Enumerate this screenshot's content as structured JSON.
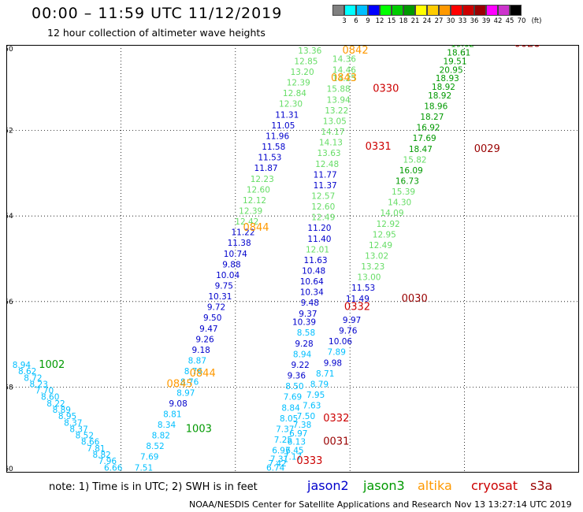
{
  "header": {
    "title": "00:00 – 11:59 UTC 11/12/2019",
    "subtitle": "12 hour collection of altimeter wave heights"
  },
  "scale": {
    "unit_label": "(ft)",
    "ticks": [
      "3",
      "6",
      "9",
      "12",
      "15",
      "18",
      "21",
      "24",
      "27",
      "30",
      "33",
      "36",
      "39",
      "42",
      "45",
      "70"
    ],
    "colors": [
      "#808080",
      "#00ffff",
      "#00bfff",
      "#0000ff",
      "#00ff00",
      "#00cc00",
      "#009900",
      "#ffff00",
      "#ffcc00",
      "#ff9900",
      "#ff0000",
      "#cc0000",
      "#990000",
      "#ff00ff",
      "#cc33cc",
      "#000000"
    ]
  },
  "map": {
    "lon_ticks": [
      "120",
      "123",
      "126",
      "129",
      "132",
      "135"
    ],
    "lat_ticks": [
      "-50",
      "-52",
      "-54",
      "-56",
      "-58",
      "-60"
    ],
    "lon_range": [
      120,
      135
    ],
    "lat_range": [
      -60,
      -50
    ],
    "grid": true
  },
  "satellites": [
    {
      "name": "jason2",
      "color": "#0000cc"
    },
    {
      "name": "jason3",
      "color": "#009900"
    },
    {
      "name": "altika",
      "color": "#ff9900"
    },
    {
      "name": "cryosat",
      "color": "#cc0000"
    },
    {
      "name": "s3a",
      "color": "#990000"
    }
  ],
  "times": [
    {
      "text": "0330",
      "lon": 129.8,
      "lat": -49.98,
      "color": "#cc0000"
    },
    {
      "text": "0330",
      "lon": 129.6,
      "lat": -51.1,
      "color": "#cc0000"
    },
    {
      "text": "0331",
      "lon": 129.4,
      "lat": -52.45,
      "color": "#cc0000"
    },
    {
      "text": "0332",
      "lon": 128.85,
      "lat": -56.2,
      "color": "#cc0000"
    },
    {
      "text": "0332",
      "lon": 128.3,
      "lat": -58.8,
      "color": "#cc0000"
    },
    {
      "text": "0333",
      "lon": 127.6,
      "lat": -59.8,
      "color": "#cc0000"
    },
    {
      "text": "0028",
      "lon": 133.3,
      "lat": -50.05,
      "color": "#990000"
    },
    {
      "text": "0029",
      "lon": 132.25,
      "lat": -52.5,
      "color": "#990000"
    },
    {
      "text": "0030",
      "lon": 130.35,
      "lat": -56.0,
      "color": "#990000"
    },
    {
      "text": "0031",
      "lon": 128.3,
      "lat": -59.35,
      "color": "#990000"
    },
    {
      "text": "0842",
      "lon": 128.8,
      "lat": -50.2,
      "color": "#ff9900"
    },
    {
      "text": "0843",
      "lon": 128.5,
      "lat": -50.85,
      "color": "#ff9900"
    },
    {
      "text": "0844",
      "lon": 126.2,
      "lat": -54.35,
      "color": "#ff9900"
    },
    {
      "text": "0844",
      "lon": 124.8,
      "lat": -57.75,
      "color": "#ff9900"
    },
    {
      "text": "0845",
      "lon": 124.2,
      "lat": -58.0,
      "color": "#ff9900"
    },
    {
      "text": "1002",
      "lon": 120.85,
      "lat": -57.55,
      "color": "#009900"
    },
    {
      "text": "1003",
      "lon": 124.7,
      "lat": -59.05,
      "color": "#009900"
    }
  ],
  "swh_labels": [
    {
      "v": "16.13",
      "lon": 128.85,
      "lat": -50.0,
      "c": "#66dd66"
    },
    {
      "v": "14.36",
      "lon": 128.85,
      "lat": -50.4,
      "c": "#66dd66"
    },
    {
      "v": "14.46",
      "lon": 128.85,
      "lat": -50.65,
      "c": "#66dd66"
    },
    {
      "v": "14.25",
      "lon": 128.85,
      "lat": -50.85,
      "c": "#66dd66"
    },
    {
      "v": "15.88",
      "lon": 128.7,
      "lat": -51.1,
      "c": "#66dd66"
    },
    {
      "v": "13.94",
      "lon": 128.7,
      "lat": -51.35,
      "c": "#66dd66"
    },
    {
      "v": "13.22",
      "lon": 128.65,
      "lat": -51.6,
      "c": "#66dd66"
    },
    {
      "v": "13.05",
      "lon": 128.6,
      "lat": -51.85,
      "c": "#66dd66"
    },
    {
      "v": "14.17",
      "lon": 128.55,
      "lat": -52.1,
      "c": "#66dd66"
    },
    {
      "v": "14.13",
      "lon": 128.5,
      "lat": -52.35,
      "c": "#66dd66"
    },
    {
      "v": "13.63",
      "lon": 128.45,
      "lat": -52.6,
      "c": "#66dd66"
    },
    {
      "v": "12.48",
      "lon": 128.4,
      "lat": -52.85,
      "c": "#66dd66"
    },
    {
      "v": "11.77",
      "lon": 128.35,
      "lat": -53.1,
      "c": "#0000cc"
    },
    {
      "v": "11.37",
      "lon": 128.35,
      "lat": -53.35,
      "c": "#0000cc"
    },
    {
      "v": "12.57",
      "lon": 128.3,
      "lat": -53.6,
      "c": "#66dd66"
    },
    {
      "v": "12.60",
      "lon": 128.3,
      "lat": -53.85,
      "c": "#66dd66"
    },
    {
      "v": "12.49",
      "lon": 128.3,
      "lat": -54.1,
      "c": "#66dd66"
    },
    {
      "v": "11.20",
      "lon": 128.2,
      "lat": -54.35,
      "c": "#0000cc"
    },
    {
      "v": "11.40",
      "lon": 128.2,
      "lat": -54.6,
      "c": "#0000cc"
    },
    {
      "v": "12.01",
      "lon": 128.15,
      "lat": -54.85,
      "c": "#66dd66"
    },
    {
      "v": "11.63",
      "lon": 128.1,
      "lat": -55.1,
      "c": "#0000cc"
    },
    {
      "v": "10.48",
      "lon": 128.05,
      "lat": -55.35,
      "c": "#0000cc"
    },
    {
      "v": "10.64",
      "lon": 128.0,
      "lat": -55.6,
      "c": "#0000cc"
    },
    {
      "v": "10.34",
      "lon": 128.0,
      "lat": -55.85,
      "c": "#0000cc"
    },
    {
      "v": "9.48",
      "lon": 127.95,
      "lat": -56.1,
      "c": "#0000cc"
    },
    {
      "v": "9.37",
      "lon": 127.9,
      "lat": -56.35,
      "c": "#0000cc"
    },
    {
      "v": "10.39",
      "lon": 127.8,
      "lat": -56.55,
      "c": "#0000cc"
    },
    {
      "v": "8.58",
      "lon": 127.85,
      "lat": -56.8,
      "c": "#00bfff"
    },
    {
      "v": "9.28",
      "lon": 127.8,
      "lat": -57.05,
      "c": "#0000cc"
    },
    {
      "v": "8.94",
      "lon": 127.75,
      "lat": -57.3,
      "c": "#00bfff"
    },
    {
      "v": "9.22",
      "lon": 127.7,
      "lat": -57.55,
      "c": "#0000cc"
    },
    {
      "v": "9.36",
      "lon": 127.6,
      "lat": -57.8,
      "c": "#0000cc"
    },
    {
      "v": "8.50",
      "lon": 127.55,
      "lat": -58.05,
      "c": "#00bfff"
    },
    {
      "v": "7.69",
      "lon": 127.5,
      "lat": -58.3,
      "c": "#00bfff"
    },
    {
      "v": "8.84",
      "lon": 127.45,
      "lat": -58.55,
      "c": "#00bfff"
    },
    {
      "v": "8.05",
      "lon": 127.4,
      "lat": -58.8,
      "c": "#00bfff"
    },
    {
      "v": "7.37",
      "lon": 127.3,
      "lat": -59.05,
      "c": "#00bfff"
    },
    {
      "v": "7.25",
      "lon": 127.25,
      "lat": -59.3,
      "c": "#00bfff"
    },
    {
      "v": "6.97",
      "lon": 127.2,
      "lat": -59.55,
      "c": "#00bfff"
    },
    {
      "v": "7.31",
      "lon": 127.15,
      "lat": -59.75,
      "c": "#00bfff"
    },
    {
      "v": "7.42",
      "lon": 127.1,
      "lat": -59.85,
      "c": "#00bfff"
    },
    {
      "v": "6.74",
      "lon": 127.05,
      "lat": -59.95,
      "c": "#00bfff"
    },
    {
      "v": "6.97",
      "lon": 127.65,
      "lat": -59.15,
      "c": "#00bfff"
    },
    {
      "v": "6.13",
      "lon": 127.6,
      "lat": -59.35,
      "c": "#00bfff"
    },
    {
      "v": "6.45",
      "lon": 127.55,
      "lat": -59.55,
      "c": "#00bfff"
    },
    {
      "v": "7.17",
      "lon": 127.5,
      "lat": -59.7,
      "c": "#00bfff"
    },
    {
      "v": "7.38",
      "lon": 127.75,
      "lat": -58.95,
      "c": "#00bfff"
    },
    {
      "v": "7.50",
      "lon": 127.85,
      "lat": -58.75,
      "c": "#00bfff"
    },
    {
      "v": "7.63",
      "lon": 128.0,
      "lat": -58.5,
      "c": "#00bfff"
    },
    {
      "v": "7.95",
      "lon": 128.1,
      "lat": -58.25,
      "c": "#00bfff"
    },
    {
      "v": "8.79",
      "lon": 128.2,
      "lat": -58.0,
      "c": "#00bfff"
    },
    {
      "v": "8.71",
      "lon": 128.35,
      "lat": -57.75,
      "c": "#00bfff"
    },
    {
      "v": "9.98",
      "lon": 128.55,
      "lat": -57.5,
      "c": "#0000cc"
    },
    {
      "v": "7.89",
      "lon": 128.65,
      "lat": -57.25,
      "c": "#00bfff"
    },
    {
      "v": "10.06",
      "lon": 128.75,
      "lat": -57.0,
      "c": "#0000cc"
    },
    {
      "v": "9.76",
      "lon": 128.95,
      "lat": -56.75,
      "c": "#0000cc"
    },
    {
      "v": "9.97",
      "lon": 129.05,
      "lat": -56.5,
      "c": "#0000cc"
    },
    {
      "v": "11.49",
      "lon": 129.2,
      "lat": -56.0,
      "c": "#0000cc"
    },
    {
      "v": "11.53",
      "lon": 129.35,
      "lat": -55.75,
      "c": "#0000cc"
    },
    {
      "v": "13.00",
      "lon": 129.5,
      "lat": -55.5,
      "c": "#66dd66"
    },
    {
      "v": "13.23",
      "lon": 129.6,
      "lat": -55.25,
      "c": "#66dd66"
    },
    {
      "v": "13.02",
      "lon": 129.7,
      "lat": -55.0,
      "c": "#66dd66"
    },
    {
      "v": "12.49",
      "lon": 129.8,
      "lat": -54.75,
      "c": "#66dd66"
    },
    {
      "v": "12.95",
      "lon": 129.9,
      "lat": -54.5,
      "c": "#66dd66"
    },
    {
      "v": "12.92",
      "lon": 130.0,
      "lat": -54.25,
      "c": "#66dd66"
    },
    {
      "v": "14.09",
      "lon": 130.1,
      "lat": -54.0,
      "c": "#66dd66"
    },
    {
      "v": "14.30",
      "lon": 130.3,
      "lat": -53.75,
      "c": "#66dd66"
    },
    {
      "v": "15.39",
      "lon": 130.4,
      "lat": -53.5,
      "c": "#66dd66"
    },
    {
      "v": "16.73",
      "lon": 130.5,
      "lat": -53.25,
      "c": "#009900"
    },
    {
      "v": "16.09",
      "lon": 130.6,
      "lat": -53.0,
      "c": "#009900"
    },
    {
      "v": "15.82",
      "lon": 130.7,
      "lat": -52.75,
      "c": "#66dd66"
    },
    {
      "v": "18.47",
      "lon": 130.85,
      "lat": -52.5,
      "c": "#009900"
    },
    {
      "v": "17.69",
      "lon": 130.95,
      "lat": -52.25,
      "c": "#009900"
    },
    {
      "v": "16.92",
      "lon": 131.05,
      "lat": -52.0,
      "c": "#009900"
    },
    {
      "v": "18.27",
      "lon": 131.15,
      "lat": -51.75,
      "c": "#009900"
    },
    {
      "v": "18.96",
      "lon": 131.25,
      "lat": -51.5,
      "c": "#009900"
    },
    {
      "v": "18.92",
      "lon": 131.35,
      "lat": -51.25,
      "c": "#009900"
    },
    {
      "v": "18.92",
      "lon": 131.45,
      "lat": -51.05,
      "c": "#009900"
    },
    {
      "v": "18.93",
      "lon": 131.55,
      "lat": -50.85,
      "c": "#009900"
    },
    {
      "v": "20.95",
      "lon": 131.65,
      "lat": -50.65,
      "c": "#009900"
    },
    {
      "v": "19.51",
      "lon": 131.75,
      "lat": -50.45,
      "c": "#009900"
    },
    {
      "v": "18.61",
      "lon": 131.85,
      "lat": -50.25,
      "c": "#009900"
    },
    {
      "v": "19.62",
      "lon": 131.95,
      "lat": -50.05,
      "c": "#009900"
    },
    {
      "v": "20.57",
      "lon": 132.15,
      "lat": -49.85,
      "c": "#009900"
    },
    {
      "v": "20.92",
      "lon": 132.3,
      "lat": -49.95,
      "c": "#009900"
    },
    {
      "v": "13.36",
      "lon": 127.95,
      "lat": -50.2,
      "c": "#66dd66"
    },
    {
      "v": "12.85",
      "lon": 127.85,
      "lat": -50.45,
      "c": "#66dd66"
    },
    {
      "v": "13.20",
      "lon": 127.75,
      "lat": -50.7,
      "c": "#66dd66"
    },
    {
      "v": "12.39",
      "lon": 127.65,
      "lat": -50.95,
      "c": "#66dd66"
    },
    {
      "v": "12.84",
      "lon": 127.55,
      "lat": -51.2,
      "c": "#66dd66"
    },
    {
      "v": "12.30",
      "lon": 127.45,
      "lat": -51.45,
      "c": "#66dd66"
    },
    {
      "v": "11.31",
      "lon": 127.35,
      "lat": -51.7,
      "c": "#0000cc"
    },
    {
      "v": "11.05",
      "lon": 127.25,
      "lat": -51.95,
      "c": "#0000cc"
    },
    {
      "v": "11.96",
      "lon": 127.1,
      "lat": -52.2,
      "c": "#0000cc"
    },
    {
      "v": "11.58",
      "lon": 127.0,
      "lat": -52.45,
      "c": "#0000cc"
    },
    {
      "v": "11.53",
      "lon": 126.9,
      "lat": -52.7,
      "c": "#0000cc"
    },
    {
      "v": "11.87",
      "lon": 126.8,
      "lat": -52.95,
      "c": "#0000cc"
    },
    {
      "v": "12.23",
      "lon": 126.7,
      "lat": -53.2,
      "c": "#66dd66"
    },
    {
      "v": "12.60",
      "lon": 126.6,
      "lat": -53.45,
      "c": "#66dd66"
    },
    {
      "v": "12.12",
      "lon": 126.5,
      "lat": -53.7,
      "c": "#66dd66"
    },
    {
      "v": "12.39",
      "lon": 126.4,
      "lat": -53.95,
      "c": "#66dd66"
    },
    {
      "v": "12.42",
      "lon": 126.3,
      "lat": -54.2,
      "c": "#66dd66"
    },
    {
      "v": "11.22",
      "lon": 126.2,
      "lat": -54.45,
      "c": "#0000cc"
    },
    {
      "v": "11.38",
      "lon": 126.1,
      "lat": -54.7,
      "c": "#0000cc"
    },
    {
      "v": "10.74",
      "lon": 126.0,
      "lat": -54.95,
      "c": "#0000cc"
    },
    {
      "v": "9.88",
      "lon": 125.9,
      "lat": -55.2,
      "c": "#0000cc"
    },
    {
      "v": "10.04",
      "lon": 125.8,
      "lat": -55.45,
      "c": "#0000cc"
    },
    {
      "v": "9.75",
      "lon": 125.7,
      "lat": -55.7,
      "c": "#0000cc"
    },
    {
      "v": "10.31",
      "lon": 125.6,
      "lat": -55.95,
      "c": "#0000cc"
    },
    {
      "v": "9.72",
      "lon": 125.5,
      "lat": -56.2,
      "c": "#0000cc"
    },
    {
      "v": "9.50",
      "lon": 125.4,
      "lat": -56.45,
      "c": "#0000cc"
    },
    {
      "v": "9.47",
      "lon": 125.3,
      "lat": -56.7,
      "c": "#0000cc"
    },
    {
      "v": "9.26",
      "lon": 125.2,
      "lat": -56.95,
      "c": "#0000cc"
    },
    {
      "v": "9.18",
      "lon": 125.1,
      "lat": -57.2,
      "c": "#0000cc"
    },
    {
      "v": "8.87",
      "lon": 125.0,
      "lat": -57.45,
      "c": "#00bfff"
    },
    {
      "v": "8.76",
      "lon": 124.9,
      "lat": -57.7,
      "c": "#00bfff"
    },
    {
      "v": "8.76",
      "lon": 124.8,
      "lat": -57.95,
      "c": "#00bfff"
    },
    {
      "v": "8.97",
      "lon": 124.7,
      "lat": -58.2,
      "c": "#00bfff"
    },
    {
      "v": "9.08",
      "lon": 124.5,
      "lat": -58.45,
      "c": "#0000cc"
    },
    {
      "v": "8.81",
      "lon": 124.35,
      "lat": -58.7,
      "c": "#00bfff"
    },
    {
      "v": "8.34",
      "lon": 124.2,
      "lat": -58.95,
      "c": "#00bfff"
    },
    {
      "v": "8.82",
      "lon": 124.05,
      "lat": -59.2,
      "c": "#00bfff"
    },
    {
      "v": "8.52",
      "lon": 123.9,
      "lat": -59.45,
      "c": "#00bfff"
    },
    {
      "v": "7.69",
      "lon": 123.75,
      "lat": -59.7,
      "c": "#00bfff"
    },
    {
      "v": "7.51",
      "lon": 123.6,
      "lat": -59.95,
      "c": "#00bfff"
    },
    {
      "v": "8.06",
      "lon": 123.45,
      "lat": -60.2,
      "c": "#00bfff"
    },
    {
      "v": "8.94",
      "lon": 120.4,
      "lat": -57.55,
      "c": "#00bfff"
    },
    {
      "v": "8.62",
      "lon": 120.55,
      "lat": -57.7,
      "c": "#00bfff"
    },
    {
      "v": "8.72",
      "lon": 120.7,
      "lat": -57.85,
      "c": "#00bfff"
    },
    {
      "v": "8.23",
      "lon": 120.85,
      "lat": -58.0,
      "c": "#00bfff"
    },
    {
      "v": "7.70",
      "lon": 121.0,
      "lat": -58.15,
      "c": "#00bfff"
    },
    {
      "v": "8.60",
      "lon": 121.15,
      "lat": -58.3,
      "c": "#00bfff"
    },
    {
      "v": "8.22",
      "lon": 121.3,
      "lat": -58.45,
      "c": "#00bfff"
    },
    {
      "v": "8.89",
      "lon": 121.45,
      "lat": -58.6,
      "c": "#00bfff"
    },
    {
      "v": "8.95",
      "lon": 121.6,
      "lat": -58.75,
      "c": "#00bfff"
    },
    {
      "v": "8.37",
      "lon": 121.75,
      "lat": -58.9,
      "c": "#00bfff"
    },
    {
      "v": "8.37",
      "lon": 121.9,
      "lat": -59.05,
      "c": "#00bfff"
    },
    {
      "v": "8.52",
      "lon": 122.05,
      "lat": -59.2,
      "c": "#00bfff"
    },
    {
      "v": "8.66",
      "lon": 122.2,
      "lat": -59.35,
      "c": "#00bfff"
    },
    {
      "v": "7.81",
      "lon": 122.35,
      "lat": -59.5,
      "c": "#00bfff"
    },
    {
      "v": "8.82",
      "lon": 122.5,
      "lat": -59.65,
      "c": "#00bfff"
    },
    {
      "v": "7.96",
      "lon": 122.65,
      "lat": -59.8,
      "c": "#00bfff"
    },
    {
      "v": "6.66",
      "lon": 122.8,
      "lat": -59.95,
      "c": "#00bfff"
    },
    {
      "v": "7.34",
      "lon": 122.95,
      "lat": -60.1,
      "c": "#00bfff"
    },
    {
      "v": "6.71",
      "lon": 123.1,
      "lat": -60.25,
      "c": "#00bfff"
    },
    {
      "v": "6.47",
      "lon": 123.25,
      "lat": -60.35,
      "c": "#00bfff"
    }
  ],
  "footer": {
    "note": "note:  1) Time is in UTC; 2) SWH is in feet",
    "credit": "NOAA/NESDIS Center for Satellite Applications and Research",
    "timestamp": "Nov 13 13:27:14 UTC 2019"
  }
}
